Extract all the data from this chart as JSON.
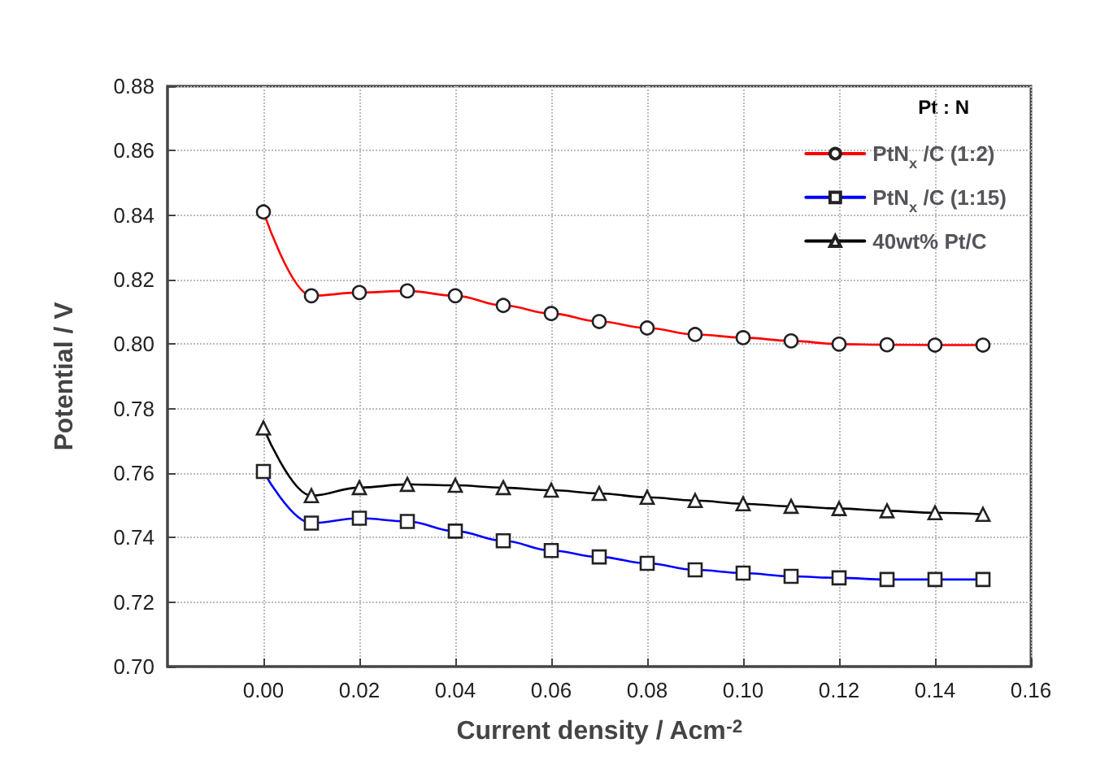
{
  "chart_data": {
    "type": "line",
    "xlabel": "Current density / Acm$^{-2}$",
    "ylabel": "Potential / V",
    "legend_title": "Pt : N",
    "legend": "top right",
    "grid": true,
    "line_style": "solid",
    "x": [
      0,
      0.01,
      0.02,
      0.03,
      0.04,
      0.05,
      0.06,
      0.07,
      0.08,
      0.09,
      0.1,
      0.11,
      0.12,
      0.13,
      0.14,
      0.15
    ],
    "xlim": [
      -0.02,
      0.16
    ],
    "xticks": [
      {
        "value": 0,
        "label": "0.00"
      },
      {
        "value": 0.02,
        "label": "0.02"
      },
      {
        "value": 0.04,
        "label": "0.04"
      },
      {
        "value": 0.06,
        "label": "0.06"
      },
      {
        "value": 0.08,
        "label": "0.08"
      },
      {
        "value": 0.1,
        "label": "0.10"
      },
      {
        "value": 0.12,
        "label": "0.12"
      },
      {
        "value": 0.14,
        "label": "0.14"
      },
      {
        "value": 0.16,
        "label": "0.16"
      }
    ],
    "ylim": [
      0.7,
      0.88
    ],
    "yticks": [
      {
        "value": 0.7,
        "label": "0.70"
      },
      {
        "value": 0.72,
        "label": "0.72"
      },
      {
        "value": 0.74,
        "label": "0.74"
      },
      {
        "value": 0.76,
        "label": "0.76"
      },
      {
        "value": 0.78,
        "label": "0.78"
      },
      {
        "value": 0.8,
        "label": "0.80"
      },
      {
        "value": 0.82,
        "label": "0.82"
      },
      {
        "value": 0.84,
        "label": "0.84"
      },
      {
        "value": 0.86,
        "label": "0.86"
      },
      {
        "value": 0.88,
        "label": "0.88"
      }
    ],
    "series": [
      {
        "name": "PtN$_{x}$ /C (1:2)",
        "color": "#ff0000",
        "marker": "circle",
        "values": [
          0.841,
          0.815,
          0.816,
          0.8165,
          0.815,
          0.812,
          0.8095,
          0.807,
          0.805,
          0.803,
          0.802,
          0.801,
          0.8,
          0.7998,
          0.7997,
          0.7997
        ]
      },
      {
        "name": "PtN$_{x}$ /C (1:15)",
        "color": "#0000ff",
        "marker": "square",
        "values": [
          0.7605,
          0.7445,
          0.746,
          0.745,
          0.742,
          0.739,
          0.736,
          0.734,
          0.732,
          0.73,
          0.729,
          0.728,
          0.7275,
          0.727,
          0.727,
          0.727
        ]
      },
      {
        "name": "40wt% Pt/C",
        "color": "#000000",
        "marker": "triangle",
        "values": [
          0.774,
          0.753,
          0.7555,
          0.7565,
          0.7562,
          0.7555,
          0.7547,
          0.7537,
          0.7525,
          0.7515,
          0.7505,
          0.7497,
          0.749,
          0.7483,
          0.7477,
          0.7472
        ]
      }
    ]
  }
}
